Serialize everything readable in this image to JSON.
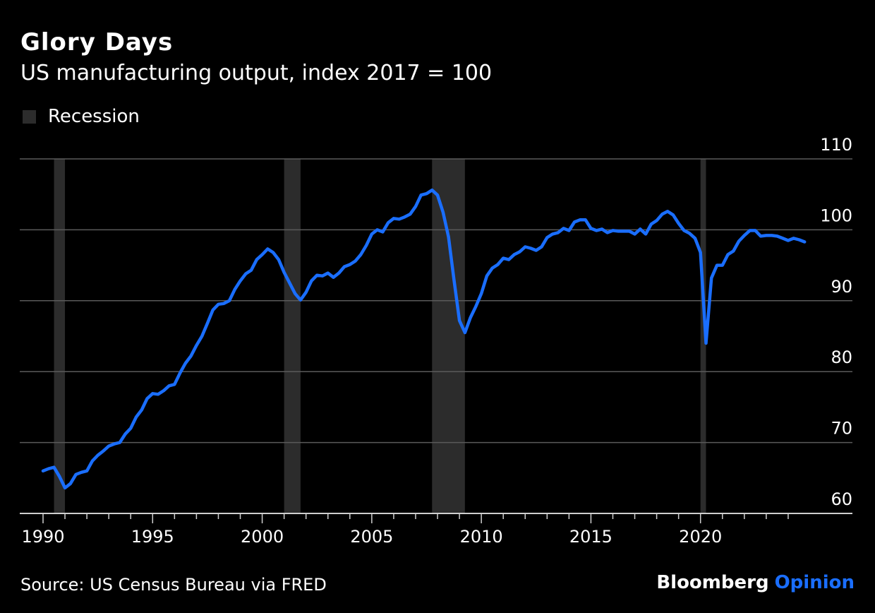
{
  "header": {
    "title": "Glory Days",
    "subtitle": "US manufacturing output, index 2017 = 100"
  },
  "legend": {
    "recession_label": "Recession"
  },
  "footer": {
    "source": "Source: US Census Bureau via FRED",
    "brand_main": "Bloomberg",
    "brand_accent": "Opinion"
  },
  "colors": {
    "background": "#000000",
    "line": "#1a6eff",
    "recession": "#2c2c2c",
    "grid": "#5a5a5a",
    "text": "#ffffff",
    "brand_accent": "#1a6eff"
  },
  "chart_data": {
    "type": "line",
    "xlim": [
      1990,
      2025
    ],
    "ylim": [
      60,
      110
    ],
    "yticks": [
      60,
      70,
      80,
      90,
      100,
      110
    ],
    "xticks": [
      1990,
      1995,
      2000,
      2005,
      2010,
      2015,
      2020
    ],
    "xtick_labels": [
      "1990",
      "1995",
      "2000",
      "2005",
      "2010",
      "2015",
      "2020"
    ],
    "ytick_labels": [
      "60",
      "70",
      "80",
      "90",
      "100",
      "110"
    ],
    "y_axis_side": "right",
    "grid": "horizontal",
    "legend_position": "top-left",
    "recessions": [
      {
        "start": 1990.5,
        "end": 1991.0
      },
      {
        "start": 2001.0,
        "end": 2001.75
      },
      {
        "start": 2007.75,
        "end": 2009.25
      },
      {
        "start": 2020.0,
        "end": 2020.25
      }
    ],
    "series": [
      {
        "values": [
          [
            1990.0,
            66.0
          ],
          [
            1990.25,
            66.3
          ],
          [
            1990.5,
            66.5
          ],
          [
            1990.75,
            65.2
          ],
          [
            1991.0,
            63.6
          ],
          [
            1991.25,
            64.2
          ],
          [
            1991.5,
            65.5
          ],
          [
            1991.75,
            65.8
          ],
          [
            1992.0,
            66.0
          ],
          [
            1992.25,
            67.4
          ],
          [
            1992.5,
            68.2
          ],
          [
            1992.75,
            68.8
          ],
          [
            1993.0,
            69.5
          ],
          [
            1993.25,
            69.8
          ],
          [
            1993.5,
            70.0
          ],
          [
            1993.75,
            71.2
          ],
          [
            1994.0,
            72.0
          ],
          [
            1994.25,
            73.6
          ],
          [
            1994.5,
            74.6
          ],
          [
            1994.75,
            76.2
          ],
          [
            1995.0,
            76.9
          ],
          [
            1995.25,
            76.8
          ],
          [
            1995.5,
            77.3
          ],
          [
            1995.75,
            78.0
          ],
          [
            1996.0,
            78.2
          ],
          [
            1996.25,
            79.8
          ],
          [
            1996.5,
            81.2
          ],
          [
            1996.75,
            82.2
          ],
          [
            1997.0,
            83.7
          ],
          [
            1997.25,
            85.0
          ],
          [
            1997.5,
            86.8
          ],
          [
            1997.75,
            88.7
          ],
          [
            1998.0,
            89.5
          ],
          [
            1998.25,
            89.6
          ],
          [
            1998.5,
            90.0
          ],
          [
            1998.75,
            91.6
          ],
          [
            1999.0,
            92.8
          ],
          [
            1999.25,
            93.8
          ],
          [
            1999.5,
            94.3
          ],
          [
            1999.75,
            95.8
          ],
          [
            2000.0,
            96.5
          ],
          [
            2000.25,
            97.3
          ],
          [
            2000.5,
            96.8
          ],
          [
            2000.75,
            95.8
          ],
          [
            2001.0,
            94.0
          ],
          [
            2001.25,
            92.5
          ],
          [
            2001.5,
            91.0
          ],
          [
            2001.75,
            90.1
          ],
          [
            2002.0,
            91.2
          ],
          [
            2002.25,
            92.8
          ],
          [
            2002.5,
            93.6
          ],
          [
            2002.75,
            93.5
          ],
          [
            2003.0,
            93.9
          ],
          [
            2003.25,
            93.3
          ],
          [
            2003.5,
            93.9
          ],
          [
            2003.75,
            94.8
          ],
          [
            2004.0,
            95.1
          ],
          [
            2004.25,
            95.6
          ],
          [
            2004.5,
            96.5
          ],
          [
            2004.75,
            97.8
          ],
          [
            2005.0,
            99.4
          ],
          [
            2005.25,
            100.0
          ],
          [
            2005.5,
            99.7
          ],
          [
            2005.75,
            101.0
          ],
          [
            2006.0,
            101.6
          ],
          [
            2006.25,
            101.5
          ],
          [
            2006.5,
            101.8
          ],
          [
            2006.75,
            102.2
          ],
          [
            2007.0,
            103.3
          ],
          [
            2007.25,
            104.9
          ],
          [
            2007.5,
            105.1
          ],
          [
            2007.75,
            105.6
          ],
          [
            2008.0,
            104.9
          ],
          [
            2008.25,
            102.5
          ],
          [
            2008.5,
            99.0
          ],
          [
            2008.75,
            93.0
          ],
          [
            2009.0,
            87.2
          ],
          [
            2009.25,
            85.5
          ],
          [
            2009.5,
            87.6
          ],
          [
            2009.75,
            89.2
          ],
          [
            2010.0,
            91.0
          ],
          [
            2010.25,
            93.5
          ],
          [
            2010.5,
            94.6
          ],
          [
            2010.75,
            95.1
          ],
          [
            2011.0,
            96.0
          ],
          [
            2011.25,
            95.8
          ],
          [
            2011.5,
            96.5
          ],
          [
            2011.75,
            96.9
          ],
          [
            2012.0,
            97.6
          ],
          [
            2012.25,
            97.4
          ],
          [
            2012.5,
            97.1
          ],
          [
            2012.75,
            97.6
          ],
          [
            2013.0,
            98.9
          ],
          [
            2013.25,
            99.4
          ],
          [
            2013.5,
            99.6
          ],
          [
            2013.75,
            100.2
          ],
          [
            2014.0,
            99.9
          ],
          [
            2014.25,
            101.1
          ],
          [
            2014.5,
            101.4
          ],
          [
            2014.75,
            101.4
          ],
          [
            2015.0,
            100.2
          ],
          [
            2015.25,
            99.9
          ],
          [
            2015.5,
            100.1
          ],
          [
            2015.75,
            99.6
          ],
          [
            2016.0,
            99.9
          ],
          [
            2016.25,
            99.8
          ],
          [
            2016.5,
            99.8
          ],
          [
            2016.75,
            99.8
          ],
          [
            2017.0,
            99.4
          ],
          [
            2017.25,
            100.1
          ],
          [
            2017.5,
            99.4
          ],
          [
            2017.75,
            100.8
          ],
          [
            2018.0,
            101.3
          ],
          [
            2018.25,
            102.2
          ],
          [
            2018.5,
            102.6
          ],
          [
            2018.75,
            102.1
          ],
          [
            2019.0,
            100.9
          ],
          [
            2019.25,
            99.9
          ],
          [
            2019.5,
            99.5
          ],
          [
            2019.75,
            98.8
          ],
          [
            2020.0,
            96.8
          ],
          [
            2020.25,
            84.0
          ],
          [
            2020.5,
            93.2
          ],
          [
            2020.75,
            95.0
          ],
          [
            2021.0,
            95.0
          ],
          [
            2021.25,
            96.5
          ],
          [
            2021.5,
            97.0
          ],
          [
            2021.75,
            98.4
          ],
          [
            2022.0,
            99.2
          ],
          [
            2022.25,
            99.9
          ],
          [
            2022.5,
            99.9
          ],
          [
            2022.75,
            99.1
          ],
          [
            2023.0,
            99.2
          ],
          [
            2023.25,
            99.2
          ],
          [
            2023.5,
            99.1
          ],
          [
            2023.75,
            98.8
          ],
          [
            2024.0,
            98.5
          ],
          [
            2024.25,
            98.8
          ],
          [
            2024.5,
            98.6
          ],
          [
            2024.75,
            98.3
          ]
        ]
      }
    ]
  }
}
